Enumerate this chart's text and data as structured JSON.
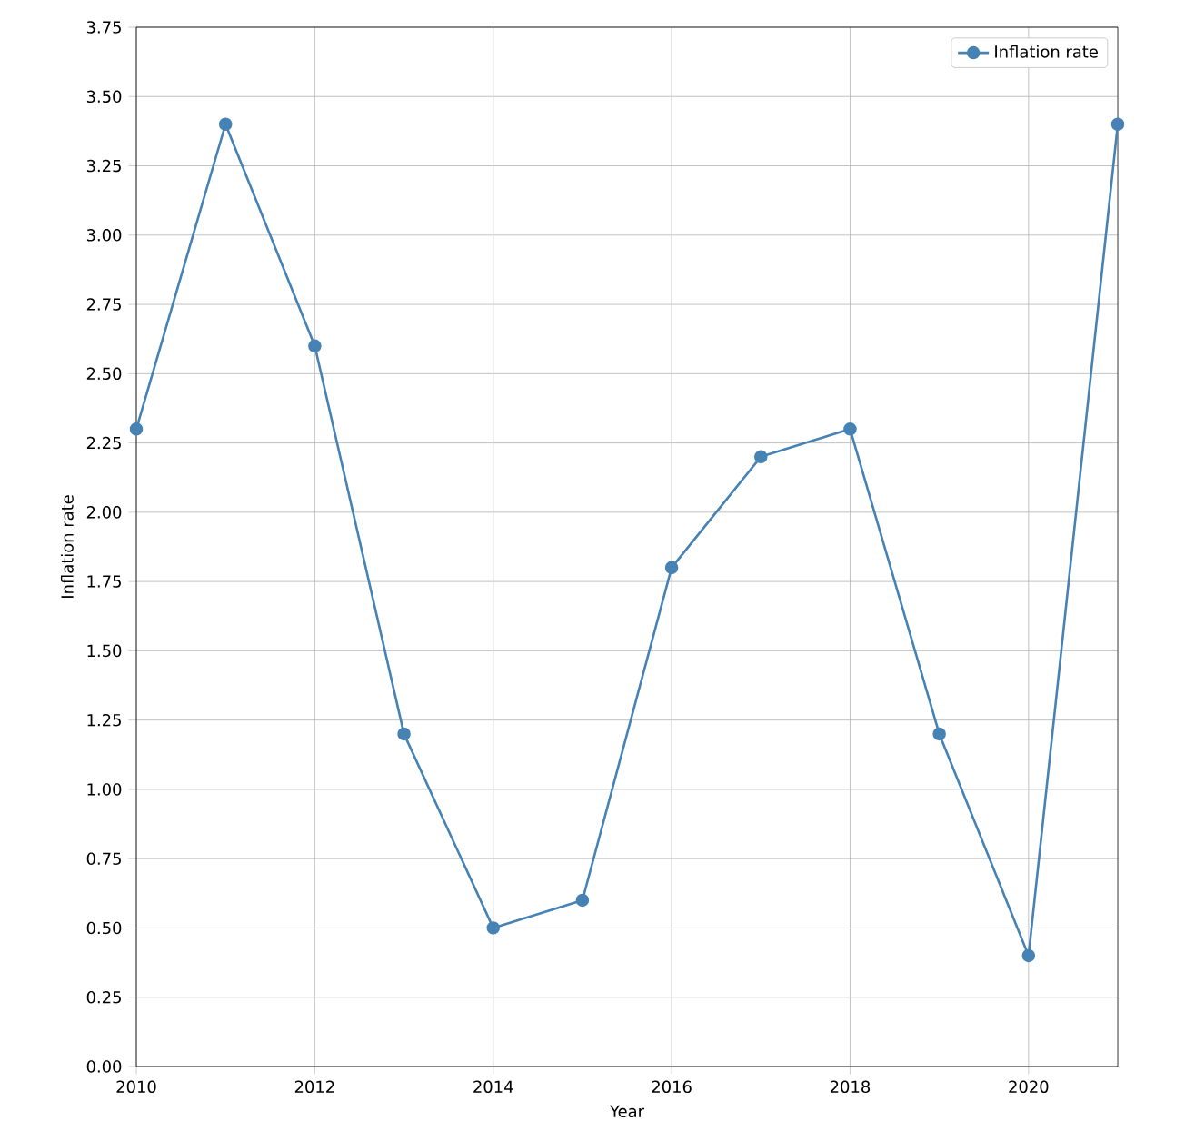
{
  "chart_data": {
    "type": "line",
    "xlabel": "Year",
    "ylabel": "Inflation rate",
    "x": [
      2010,
      2011,
      2012,
      2013,
      2014,
      2015,
      2016,
      2017,
      2018,
      2019,
      2020,
      2021
    ],
    "series": [
      {
        "name": "Inflation rate",
        "color": "#4682b4",
        "values": [
          2.3,
          3.4,
          2.6,
          1.2,
          0.5,
          0.6,
          1.8,
          2.2,
          2.3,
          1.2,
          0.4,
          3.4
        ]
      }
    ],
    "xlim": [
      2010,
      2021
    ],
    "xticks": [
      2010,
      2012,
      2014,
      2016,
      2018,
      2020
    ],
    "ylim": [
      0,
      3.75
    ],
    "yticks": [
      {
        "value": 0,
        "label": "0.00"
      },
      {
        "value": 0.25,
        "label": "0.25"
      },
      {
        "value": 0.5,
        "label": "0.50"
      },
      {
        "value": 0.75,
        "label": "0.75"
      },
      {
        "value": 1.0,
        "label": "1.00"
      },
      {
        "value": 1.25,
        "label": "1.25"
      },
      {
        "value": 1.5,
        "label": "1.50"
      },
      {
        "value": 1.75,
        "label": "1.75"
      },
      {
        "value": 2.0,
        "label": "2.00"
      },
      {
        "value": 2.25,
        "label": "2.25"
      },
      {
        "value": 2.5,
        "label": "2.50"
      },
      {
        "value": 2.75,
        "label": "2.75"
      },
      {
        "value": 3.0,
        "label": "3.00"
      },
      {
        "value": 3.25,
        "label": "3.25"
      },
      {
        "value": 3.5,
        "label": "3.50"
      },
      {
        "value": 3.75,
        "label": "3.75"
      }
    ],
    "grid": true,
    "legend": "top right",
    "marker": "circle",
    "line_style": "solid"
  }
}
